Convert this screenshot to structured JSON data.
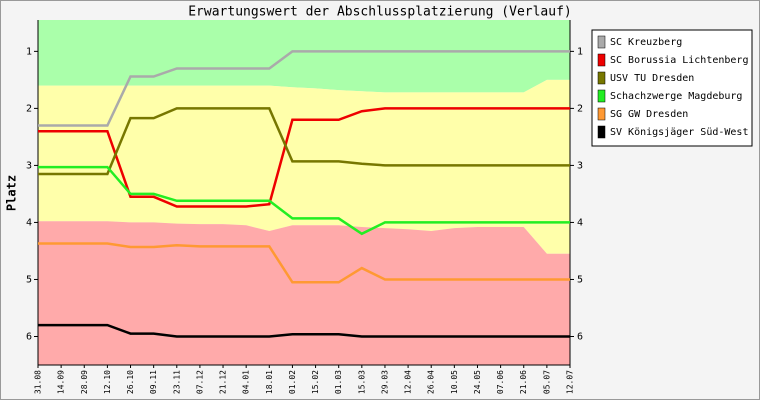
{
  "chart_data": {
    "type": "line",
    "title": "Erwartungswert der Abschlussplatzierung (Verlauf)",
    "y_label": "Platz",
    "categories": [
      "31.08",
      "14.09",
      "28.09",
      "12.10",
      "26.10",
      "09.11",
      "23.11",
      "07.12",
      "21.12",
      "04.01",
      "18.01",
      "01.02",
      "15.02",
      "01.03",
      "15.03",
      "29.03",
      "12.04",
      "26.04",
      "10.05",
      "24.05",
      "07.06",
      "21.06",
      "05.07",
      "12.07"
    ],
    "ylim": [
      0.45,
      6.5
    ],
    "y_inverted": true,
    "yticks": [
      1,
      2,
      3,
      4,
      5,
      6
    ],
    "legend": "right",
    "zones": [
      {
        "color": "#aaffaa",
        "bottom": [
          1.6,
          1.6,
          1.6,
          1.6,
          1.6,
          1.6,
          1.6,
          1.6,
          1.6,
          1.6,
          1.6,
          1.63,
          1.65,
          1.68,
          1.7,
          1.72,
          1.72,
          1.72,
          1.72,
          1.72,
          1.72,
          1.72,
          1.5,
          1.5
        ]
      },
      {
        "color": "#ffffaa",
        "bottom": [
          3.98,
          3.98,
          3.98,
          3.98,
          4.0,
          4.0,
          4.02,
          4.03,
          4.03,
          4.05,
          4.15,
          4.05,
          4.05,
          4.05,
          4.08,
          4.1,
          4.12,
          4.15,
          4.1,
          4.08,
          4.08,
          4.08,
          4.55,
          4.55
        ]
      },
      {
        "color": "#ffaaaa"
      }
    ],
    "series": [
      {
        "name": "SC Kreuzberg",
        "color": "#aaaaaa",
        "values": [
          2.3,
          2.3,
          2.3,
          2.3,
          1.44,
          1.44,
          1.3,
          1.3,
          1.3,
          1.3,
          1.3,
          1.0,
          1.0,
          1.0,
          1.0,
          1.0,
          1.0,
          1.0,
          1.0,
          1.0,
          1.0,
          1.0,
          1.0,
          1.0
        ]
      },
      {
        "name": "SC Borussia Lichtenberg",
        "color": "#ee0000",
        "values": [
          2.4,
          2.4,
          2.4,
          2.4,
          3.55,
          3.55,
          3.72,
          3.72,
          3.72,
          3.72,
          3.68,
          2.2,
          2.2,
          2.2,
          2.05,
          2.0,
          2.0,
          2.0,
          2.0,
          2.0,
          2.0,
          2.0,
          2.0,
          2.0
        ]
      },
      {
        "name": "USV TU Dresden",
        "color": "#777700",
        "values": [
          3.15,
          3.15,
          3.15,
          3.15,
          2.17,
          2.17,
          2.0,
          2.0,
          2.0,
          2.0,
          2.0,
          2.93,
          2.93,
          2.93,
          2.97,
          3.0,
          3.0,
          3.0,
          3.0,
          3.0,
          3.0,
          3.0,
          3.0,
          3.0
        ]
      },
      {
        "name": "Schachzwerge Magdeburg",
        "color": "#22ee22",
        "values": [
          3.03,
          3.03,
          3.03,
          3.03,
          3.5,
          3.5,
          3.62,
          3.62,
          3.62,
          3.62,
          3.62,
          3.93,
          3.93,
          3.93,
          4.2,
          4.0,
          4.0,
          4.0,
          4.0,
          4.0,
          4.0,
          4.0,
          4.0,
          4.0
        ]
      },
      {
        "name": "SG GW Dresden",
        "color": "#ff9933",
        "values": [
          4.37,
          4.37,
          4.37,
          4.37,
          4.43,
          4.43,
          4.4,
          4.42,
          4.42,
          4.42,
          4.42,
          5.05,
          5.05,
          5.05,
          4.8,
          5.0,
          5.0,
          5.0,
          5.0,
          5.0,
          5.0,
          5.0,
          5.0,
          5.0
        ]
      },
      {
        "name": "SV Königsjäger Süd-West",
        "color": "#000000",
        "values": [
          5.8,
          5.8,
          5.8,
          5.8,
          5.95,
          5.95,
          6.0,
          6.0,
          6.0,
          6.0,
          6.0,
          5.96,
          5.96,
          5.96,
          6.0,
          6.0,
          6.0,
          6.0,
          6.0,
          6.0,
          6.0,
          6.0,
          6.0,
          6.0
        ]
      }
    ]
  }
}
